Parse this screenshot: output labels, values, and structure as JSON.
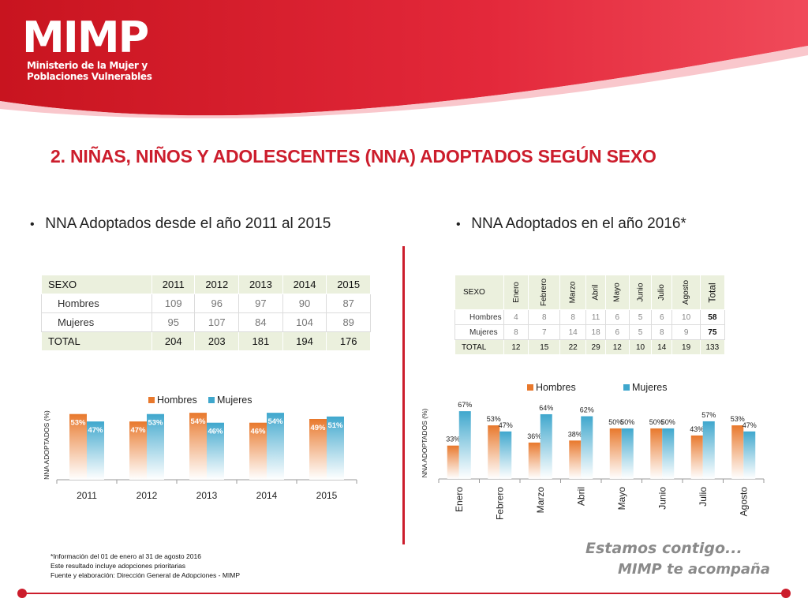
{
  "header": {
    "logo_mark": "MIMP",
    "logo_line1": "Ministerio de la Mujer y",
    "logo_line2": "Poblaciones Vulnerables",
    "brand_color": "#d71f2b"
  },
  "title": "2. NIÑAS, NIÑOS Y ADOLESCENTES (NNA) ADOPTADOS SEGÚN SEXO",
  "left": {
    "bullet": "NNA Adoptados desde el año 2011 al 2015",
    "table": {
      "headers": [
        "SEXO",
        "2011",
        "2012",
        "2013",
        "2014",
        "2015"
      ],
      "rows": [
        {
          "label": "Hombres",
          "values": [
            "109",
            "96",
            "97",
            "90",
            "87"
          ]
        },
        {
          "label": "Mujeres",
          "values": [
            "95",
            "107",
            "84",
            "104",
            "89"
          ]
        }
      ],
      "total": {
        "label": "TOTAL",
        "values": [
          "204",
          "203",
          "181",
          "194",
          "176"
        ]
      }
    }
  },
  "right": {
    "bullet": "NNA Adoptados en el año 2016*",
    "table": {
      "headers": [
        "SEXO",
        "Enero",
        "Febrero",
        "Marzo",
        "Abril",
        "Mayo",
        "Junio",
        "Julio",
        "Agosto",
        "Total"
      ],
      "rows": [
        {
          "label": "Hombres",
          "values": [
            "4",
            "8",
            "8",
            "11",
            "6",
            "5",
            "6",
            "10"
          ],
          "total": "58"
        },
        {
          "label": "Mujeres",
          "values": [
            "8",
            "7",
            "14",
            "18",
            "6",
            "5",
            "8",
            "9"
          ],
          "total": "75"
        }
      ],
      "total": {
        "label": "TOTAL",
        "values": [
          "12",
          "15",
          "22",
          "29",
          "12",
          "10",
          "14",
          "19",
          "133"
        ]
      }
    }
  },
  "chart_data": [
    {
      "type": "bar",
      "categories": [
        "2011",
        "2012",
        "2013",
        "2014",
        "2015"
      ],
      "series": [
        {
          "name": "Hombres",
          "values": [
            53,
            47,
            54,
            46,
            49
          ],
          "color": "#e8782c"
        },
        {
          "name": "Mujeres",
          "values": [
            47,
            53,
            46,
            54,
            51
          ],
          "color": "#3fa7cd"
        }
      ],
      "labels": {
        "Hombres": [
          "53%",
          "47%",
          "54%",
          "46%",
          "49%"
        ],
        "Mujeres": [
          "47%",
          "53%",
          "46%",
          "54%",
          "51%"
        ]
      },
      "ylabel": "NNA ADOPTADOS (%)",
      "legend": "top",
      "grid": false
    },
    {
      "type": "bar",
      "categories": [
        "Enero",
        "Febrero",
        "Marzo",
        "Abril",
        "Mayo",
        "Junio",
        "Julio",
        "Agosto"
      ],
      "series": [
        {
          "name": "Hombres",
          "values": [
            33,
            53,
            36,
            38,
            50,
            50,
            43,
            53
          ],
          "color": "#e8782c"
        },
        {
          "name": "Mujeres",
          "values": [
            67,
            47,
            64,
            62,
            50,
            50,
            57,
            47
          ],
          "color": "#3fa7cd"
        }
      ],
      "labels": {
        "Hombres": [
          "33%",
          "53%",
          "36%",
          "38%",
          "50%",
          "50%",
          "43%",
          "53%"
        ],
        "Mujeres": [
          "67%",
          "47%",
          "64%",
          "62%",
          "50%",
          "50%",
          "57%",
          "47%"
        ]
      },
      "ylabel": "NNA ADOPTADOS (%)",
      "legend": "top",
      "grid": false
    }
  ],
  "footnote": {
    "line1": "*Información del 01 de enero al 31 de agosto 2016",
    "line2": "Este resultado incluye adopciones prioritarias",
    "line3": "Fuente y elaboración: Dirección General de Adopciones - MIMP"
  },
  "slogan": {
    "line1": "Estamos contigo...",
    "line2": "MIMP te acompaña"
  }
}
